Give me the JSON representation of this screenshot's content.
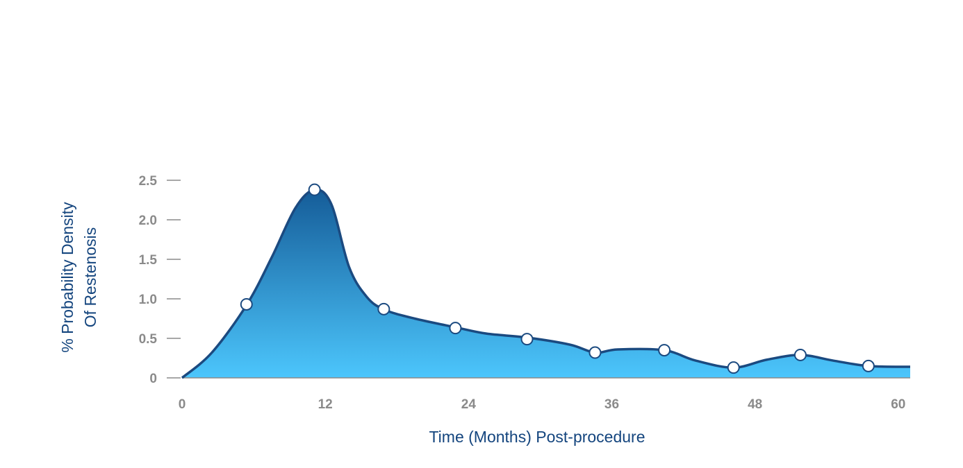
{
  "chart_data": {
    "type": "area",
    "title": "",
    "xlabel": "Time (Months) Post-procedure",
    "ylabel_lines": [
      "% Probability Density",
      "Of Restenosis"
    ],
    "xlim": [
      0,
      61
    ],
    "ylim": [
      0,
      2.5
    ],
    "x_ticks": [
      0,
      12,
      24,
      36,
      48,
      60
    ],
    "x_tick_labels": [
      "0",
      "12",
      "24",
      "36",
      "48",
      "60"
    ],
    "y_ticks": [
      0,
      0.5,
      1.0,
      1.5,
      2.0,
      2.5
    ],
    "y_tick_labels": [
      "0",
      "0.5",
      "1.0",
      "1.5",
      "2.0",
      "2.5"
    ],
    "grid": false,
    "legend": "none",
    "colors": {
      "line": "#1b4a80",
      "fill_top": "#155c98",
      "fill_bottom": "#4cc6fc",
      "marker_fill": "#ffffff",
      "tick_text": "#8a8a8a",
      "axis_title": "#14457e"
    },
    "series": [
      {
        "curve": [
          [
            0,
            0
          ],
          [
            2.5,
            0.32
          ],
          [
            5.4,
            0.92
          ],
          [
            7.5,
            1.52
          ],
          [
            9.5,
            2.15
          ],
          [
            11.1,
            2.38
          ],
          [
            12.5,
            2.2
          ],
          [
            14.0,
            1.4
          ],
          [
            15.5,
            1.02
          ],
          [
            17.0,
            0.86
          ],
          [
            19.5,
            0.75
          ],
          [
            22.9,
            0.64
          ],
          [
            25.5,
            0.56
          ],
          [
            28.9,
            0.51
          ],
          [
            32.5,
            0.42
          ],
          [
            34.6,
            0.32
          ],
          [
            36.5,
            0.36
          ],
          [
            40.4,
            0.35
          ],
          [
            43.0,
            0.22
          ],
          [
            46.2,
            0.13
          ],
          [
            49.0,
            0.23
          ],
          [
            51.8,
            0.29
          ],
          [
            54.5,
            0.22
          ],
          [
            57.5,
            0.15
          ],
          [
            61.0,
            0.14
          ]
        ],
        "markers": [
          [
            5.4,
            0.93
          ],
          [
            11.1,
            2.38
          ],
          [
            16.9,
            0.87
          ],
          [
            22.9,
            0.63
          ],
          [
            28.9,
            0.49
          ],
          [
            34.6,
            0.32
          ],
          [
            40.4,
            0.35
          ],
          [
            46.2,
            0.13
          ],
          [
            51.8,
            0.29
          ],
          [
            57.5,
            0.15
          ]
        ]
      }
    ]
  }
}
